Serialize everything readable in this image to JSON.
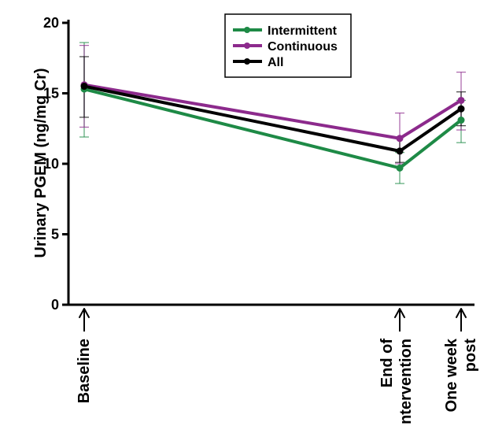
{
  "chart_data": {
    "type": "line",
    "title": "",
    "ylabel": "Urinary PGEM (ng/mg Cr)",
    "xlabel": "",
    "ylim": [
      0,
      20
    ],
    "yticks": [
      0,
      5,
      10,
      15,
      20
    ],
    "categories": [
      [
        "Baseline"
      ],
      [
        "End of",
        "ntervention"
      ],
      [
        "One week",
        "post"
      ]
    ],
    "legend_position": "top-center",
    "series": [
      {
        "name": "Intermittent",
        "color": "#1e8a46",
        "values": [
          15.3,
          9.7,
          13.1
        ],
        "err_low": [
          11.9,
          8.6,
          11.5
        ],
        "err_high": [
          18.6,
          10.8,
          14.5
        ]
      },
      {
        "name": "Continuous",
        "color": "#8c2a8c",
        "values": [
          15.6,
          11.8,
          14.5
        ],
        "err_low": [
          12.6,
          10.0,
          12.4
        ],
        "err_high": [
          18.4,
          13.6,
          16.5
        ]
      },
      {
        "name": "All",
        "color": "#000000",
        "values": [
          15.5,
          10.9,
          13.9
        ],
        "err_low": [
          13.3,
          10.1,
          12.7
        ],
        "err_high": [
          17.6,
          11.9,
          15.1
        ]
      }
    ]
  }
}
